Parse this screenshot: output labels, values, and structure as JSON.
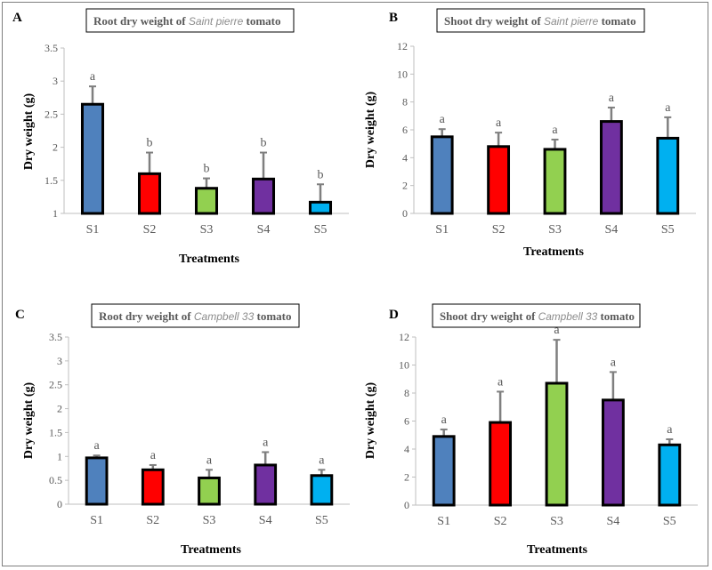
{
  "colors": {
    "S1": "#4f81bd",
    "S2": "#ff0000",
    "S3": "#92d050",
    "S4": "#7030a0",
    "S5": "#00b0f0",
    "error_bar": "#7f7f7f",
    "axis": "#bfbfbf"
  },
  "chart_data": [
    {
      "type": "bar",
      "panel": "A",
      "title_parts": [
        "Root dry weight of ",
        "Saint pierre",
        " tomato"
      ],
      "xlabel": "Treatments",
      "ylabel": "Dry  weight (g)",
      "categories": [
        "S1",
        "S2",
        "S3",
        "S4",
        "S5"
      ],
      "values": [
        2.65,
        1.6,
        1.38,
        1.52,
        1.17
      ],
      "errors": [
        0.27,
        0.32,
        0.15,
        0.4,
        0.27
      ],
      "significance": [
        "a",
        "b",
        "b",
        "b",
        "b"
      ],
      "ylim": [
        1,
        3.5
      ],
      "yticks": [
        1,
        1.5,
        2,
        2.5,
        3,
        3.5
      ],
      "ytick_labels": [
        "1",
        "1.5",
        "2",
        "2.5",
        "3",
        "3.5"
      ],
      "grid": false
    },
    {
      "type": "bar",
      "panel": "B",
      "title_parts": [
        "Shoot dry weight of ",
        "Saint pierre",
        " tomato"
      ],
      "xlabel": "Treatments",
      "ylabel": "Dry  weight (g)",
      "categories": [
        "S1",
        "S2",
        "S3",
        "S4",
        "S5"
      ],
      "values": [
        5.5,
        4.8,
        4.6,
        6.6,
        5.4
      ],
      "errors": [
        0.55,
        1.0,
        0.7,
        1.0,
        1.5
      ],
      "significance": [
        "a",
        "a",
        "a",
        "a",
        "a"
      ],
      "ylim": [
        0,
        12
      ],
      "yticks": [
        0,
        2,
        4,
        6,
        8,
        10,
        12
      ],
      "ytick_labels": [
        "0",
        "2",
        "4",
        "6",
        "8",
        "10",
        "12"
      ],
      "grid": false
    },
    {
      "type": "bar",
      "panel": "C",
      "title_parts": [
        "Root dry weight of ",
        "Campbell 33",
        " tomato"
      ],
      "xlabel": "Treatments",
      "ylabel": "Dry weight (g)",
      "categories": [
        "S1",
        "S2",
        "S3",
        "S4",
        "S5"
      ],
      "values": [
        0.97,
        0.72,
        0.55,
        0.82,
        0.6
      ],
      "errors": [
        0.05,
        0.1,
        0.17,
        0.27,
        0.12
      ],
      "significance": [
        "a",
        "a",
        "a",
        "a",
        "a"
      ],
      "ylim": [
        0,
        3.5
      ],
      "yticks": [
        0,
        0.5,
        1,
        1.5,
        2,
        2.5,
        3,
        3.5
      ],
      "ytick_labels": [
        "0",
        "0.5",
        "1",
        "1.5",
        "2",
        "2.5",
        "3",
        "3.5"
      ],
      "grid": false
    },
    {
      "type": "bar",
      "panel": "D",
      "title_parts": [
        "Shoot dry weight of ",
        "Campbell 33",
        " tomato"
      ],
      "xlabel": "Treatments",
      "ylabel": "Dry  weight (g)",
      "categories": [
        "S1",
        "S2",
        "S3",
        "S4",
        "S5"
      ],
      "values": [
        4.9,
        5.9,
        8.7,
        7.5,
        4.3
      ],
      "errors": [
        0.5,
        2.2,
        3.1,
        2.0,
        0.4
      ],
      "significance": [
        "a",
        "a",
        "a",
        "a",
        "a"
      ],
      "ylim": [
        0,
        12
      ],
      "yticks": [
        0,
        2,
        4,
        6,
        8,
        10,
        12
      ],
      "ytick_labels": [
        "0",
        "2",
        "4",
        "6",
        "8",
        "10",
        "12"
      ],
      "grid": false
    }
  ]
}
